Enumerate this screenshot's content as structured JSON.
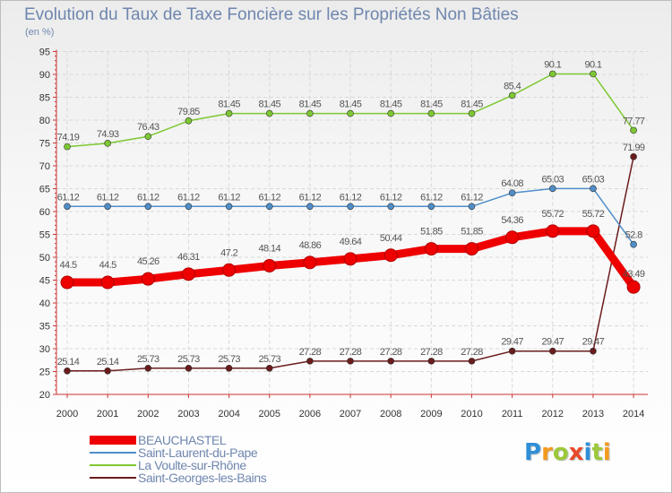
{
  "chart_data": {
    "type": "line",
    "title": "Evolution du Taux de Taxe Foncière sur les Propriétés Non Bâties",
    "ylabel": "(en %)",
    "xlabel": "",
    "ylim": [
      20,
      95
    ],
    "yticks": [
      20,
      25,
      30,
      35,
      40,
      45,
      50,
      55,
      60,
      65,
      70,
      75,
      80,
      85,
      90,
      95
    ],
    "categories": [
      "2000",
      "2001",
      "2002",
      "2003",
      "2004",
      "2005",
      "2006",
      "2007",
      "2008",
      "2009",
      "2010",
      "2011",
      "2012",
      "2013",
      "2014"
    ],
    "series": [
      {
        "name": "BEAUCHASTEL",
        "color": "#ee0000",
        "values": [
          44.5,
          44.5,
          45.26,
          46.31,
          47.2,
          48.14,
          48.86,
          49.64,
          50.44,
          51.85,
          51.85,
          54.36,
          55.72,
          55.72,
          43.49
        ],
        "labels": [
          "44.5",
          "44.5",
          "45.26",
          "46.31",
          "47.2",
          "48.14",
          "48.86",
          "49.64",
          "50.44",
          "51.85",
          "51.85",
          "54.36",
          "55.72",
          "55.72",
          "43.49"
        ]
      },
      {
        "name": "Saint-Laurent-du-Pape",
        "color": "#4f8ec9",
        "values": [
          61.12,
          61.12,
          61.12,
          61.12,
          61.12,
          61.12,
          61.12,
          61.12,
          61.12,
          61.12,
          61.12,
          64.08,
          65.03,
          65.03,
          52.8
        ],
        "labels": [
          "61.12",
          "61.12",
          "61.12",
          "61.12",
          "61.12",
          "61.12",
          "61.12",
          "61.12",
          "61.12",
          "61.12",
          "61.12",
          "64.08",
          "65.03",
          "65.03",
          "52.8"
        ]
      },
      {
        "name": "La Voulte-sur-Rhône",
        "color": "#7dc832",
        "values": [
          74.19,
          74.93,
          76.43,
          79.85,
          81.45,
          81.45,
          81.45,
          81.45,
          81.45,
          81.45,
          81.45,
          85.4,
          90.1,
          90.1,
          77.77
        ],
        "labels": [
          "74.19",
          "74.93",
          "76.43",
          "79.85",
          "81.45",
          "81.45",
          "81.45",
          "81.45",
          "81.45",
          "81.45",
          "81.45",
          "85.4",
          "90.1",
          "90.1",
          "77.77"
        ]
      },
      {
        "name": "Saint-Georges-les-Bains",
        "color": "#6b1c1c",
        "values": [
          25.14,
          25.14,
          25.73,
          25.73,
          25.73,
          25.73,
          27.28,
          27.28,
          27.28,
          27.28,
          27.28,
          29.47,
          29.47,
          29.47,
          71.99
        ],
        "labels": [
          "25.14",
          "25.14",
          "25.73",
          "25.73",
          "25.73",
          "25.73",
          "27.28",
          "27.28",
          "27.28",
          "27.28",
          "27.28",
          "29.47",
          "29.47",
          "29.47",
          "71.99"
        ]
      }
    ],
    "legend": "bottom-left"
  },
  "logo": {
    "letters": [
      "P",
      "r",
      "o",
      "x",
      "i",
      "t",
      "i"
    ],
    "colors": [
      "#2f8fd8",
      "#f39a1e",
      "#9cc83a",
      "#e84a2c",
      "#2f8fd8",
      "#9cc83a",
      "#f39a1e"
    ]
  }
}
